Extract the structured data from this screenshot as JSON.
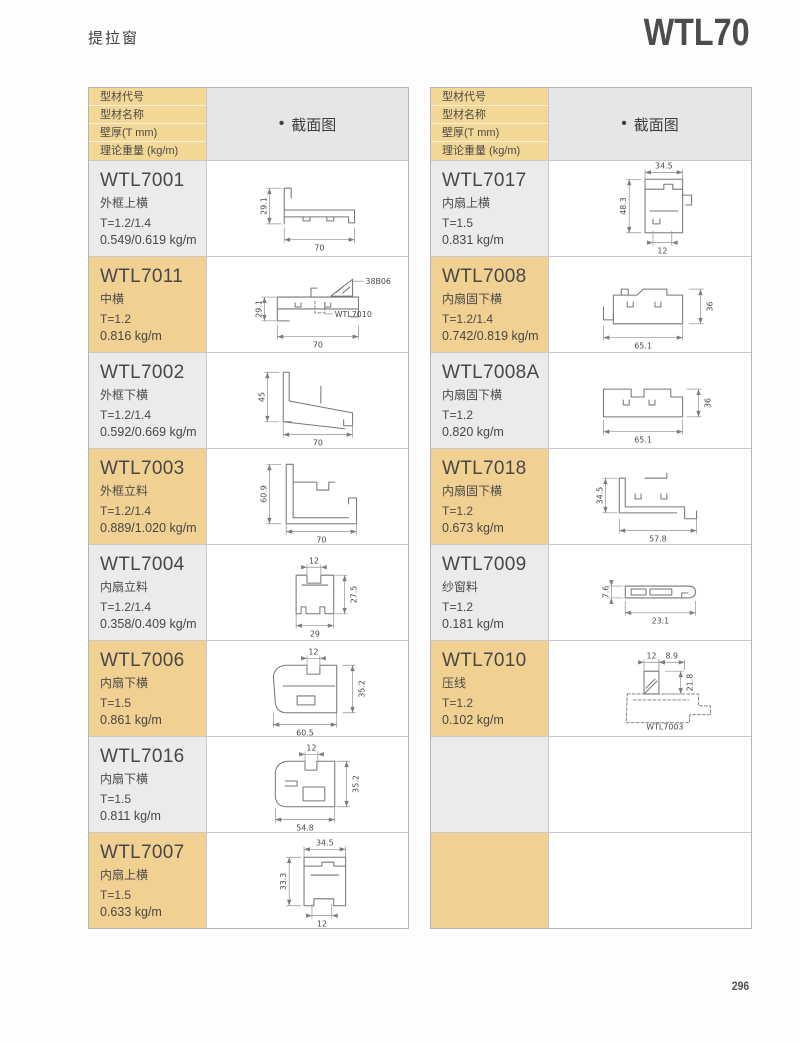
{
  "page": {
    "title": "提拉窗",
    "model": "WTL70",
    "page_number": "296"
  },
  "header": {
    "bullet": "•",
    "section_label": "截面图",
    "row_labels": [
      "型材代号",
      "型材名称",
      "壁厚(T mm)",
      "理论重量 (kg/m)"
    ]
  },
  "colors": {
    "tan": "#f1d191",
    "header_tan": "#f3d795",
    "gray_cell": "#eaebeb",
    "header_gray": "#e5e7e7",
    "border": "#c9c9c9"
  },
  "left_table": {
    "rows": [
      {
        "code": "WTL7001",
        "name": "外框上横",
        "thickness": "T=1.2/1.4",
        "weight": "0.549/0.619 kg/m",
        "dims": {
          "h": "29.1",
          "w": "70"
        }
      },
      {
        "code": "WTL7011",
        "name": "中横",
        "thickness": "T=1.2",
        "weight": "0.816 kg/m",
        "dims": {
          "h": "29.1",
          "w": "70",
          "ref_top": "38B06",
          "ref_mid": "WTL7010"
        }
      },
      {
        "code": "WTL7002",
        "name": "外框下横",
        "thickness": "T=1.2/1.4",
        "weight": "0.592/0.669 kg/m",
        "dims": {
          "h": "45",
          "w": "70"
        }
      },
      {
        "code": "WTL7003",
        "name": "外框立料",
        "thickness": "T=1.2/1.4",
        "weight": "0.889/1.020 kg/m",
        "dims": {
          "h": "60.9",
          "w": "70"
        }
      },
      {
        "code": "WTL7004",
        "name": "内扇立料",
        "thickness": "T=1.2/1.4",
        "weight": "0.358/0.409 kg/m",
        "dims": {
          "top": "12",
          "h": "27.5",
          "w": "29"
        }
      },
      {
        "code": "WTL7006",
        "name": "内扇下横",
        "thickness": "T=1.5",
        "weight": "0.861 kg/m",
        "dims": {
          "top": "12",
          "h": "35.2",
          "w": "60.5"
        }
      },
      {
        "code": "WTL7016",
        "name": "内扇下横",
        "thickness": "T=1.5",
        "weight": "0.811 kg/m",
        "dims": {
          "top": "12",
          "h": "35.2",
          "w": "54.8"
        }
      },
      {
        "code": "WTL7007",
        "name": "内扇上横",
        "thickness": "T=1.5",
        "weight": "0.633 kg/m",
        "dims": {
          "top": "34.5",
          "h": "33.3",
          "w": "12"
        }
      }
    ]
  },
  "right_table": {
    "rows": [
      {
        "code": "WTL7017",
        "name": "内扇上横",
        "thickness": "T=1.5",
        "weight": "0.831 kg/m",
        "dims": {
          "top": "34.5",
          "h": "48.3",
          "w": "12"
        }
      },
      {
        "code": "WTL7008",
        "name": "内扇固下横",
        "thickness": "T=1.2/1.4",
        "weight": "0.742/0.819 kg/m",
        "dims": {
          "h": "36",
          "w": "65.1"
        }
      },
      {
        "code": "WTL7008A",
        "name": "内扇固下横",
        "thickness": "T=1.2",
        "weight": "0.820 kg/m",
        "dims": {
          "h": "36",
          "w": "65.1"
        }
      },
      {
        "code": "WTL7018",
        "name": "内扇固下横",
        "thickness": "T=1.2",
        "weight": "0.673 kg/m",
        "dims": {
          "h": "34.5",
          "w": "57.8"
        }
      },
      {
        "code": "WTL7009",
        "name": "纱窗料",
        "thickness": "T=1.2",
        "weight": "0.181 kg/m",
        "dims": {
          "h": "7.6",
          "w": "23.1"
        }
      },
      {
        "code": "WTL7010",
        "name": "压线",
        "thickness": "T=1.2",
        "weight": "0.102 kg/m",
        "dims": {
          "top": "12",
          "top2": "8.9",
          "h": "21.8",
          "ref": "WTL7003"
        }
      },
      {
        "code": "",
        "name": "",
        "thickness": "",
        "weight": "",
        "dims": {}
      },
      {
        "code": "",
        "name": "",
        "thickness": "",
        "weight": "",
        "dims": {}
      }
    ]
  }
}
